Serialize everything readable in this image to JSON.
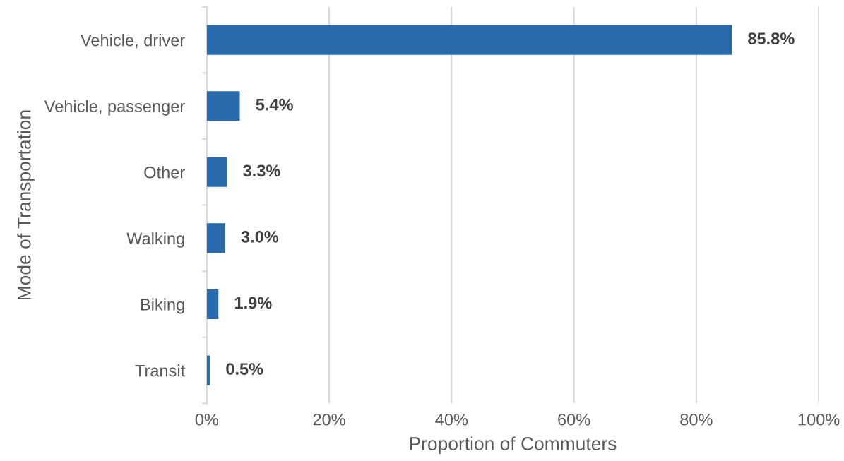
{
  "chart_data": {
    "type": "bar",
    "orientation": "horizontal",
    "xlabel": "Proportion of Commuters",
    "ylabel": "Mode of Transportation",
    "categories": [
      "Vehicle, driver",
      "Vehicle, passenger",
      "Other",
      "Walking",
      "Biking",
      "Transit"
    ],
    "values": [
      85.8,
      5.4,
      3.3,
      3.0,
      1.9,
      0.5
    ],
    "value_labels": [
      "85.8%",
      "5.4%",
      "3.3%",
      "3.0%",
      "1.9%",
      "0.5%"
    ],
    "color": "#2a6cab",
    "xlim": [
      0,
      100
    ],
    "xticks": [
      {
        "value": 0,
        "label": "0%"
      },
      {
        "value": 20,
        "label": "20%"
      },
      {
        "value": 40,
        "label": "40%"
      },
      {
        "value": 60,
        "label": "60%"
      },
      {
        "value": 80,
        "label": "80%"
      },
      {
        "value": 100,
        "label": "100%"
      }
    ],
    "grid": "x"
  }
}
